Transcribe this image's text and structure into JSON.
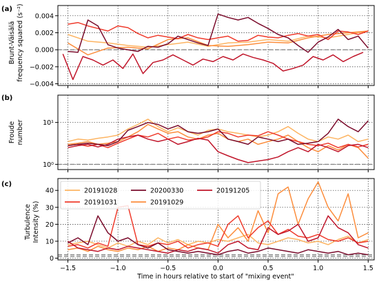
{
  "colors": {
    "20191028": "#fdb462",
    "20191029": "#fc8d3c",
    "20191031": "#ef3b2c",
    "20191205": "#c0152a",
    "20200330": "#7a0b2b"
  },
  "chart_data": [
    {
      "panel_label": "(a)",
      "type": "line",
      "ylabel": [
        "Brunt-Väisälä",
        "frequency squared (s⁻²)"
      ],
      "xlim": [
        -1.6,
        1.56
      ],
      "ylim": [
        -0.0042,
        0.0052
      ],
      "yticks": [
        -0.004,
        -0.002,
        0.0,
        0.002,
        0.004
      ],
      "ytick_labels": [
        "−0.004",
        "−0.002",
        "0.000",
        "0.002",
        "0.004"
      ],
      "xticks": [
        -1.5,
        -1.0,
        -0.5,
        0.0,
        0.5,
        1.0,
        1.5
      ],
      "xtick_labels": [
        "",
        "",
        "",
        "",
        "",
        "",
        ""
      ],
      "reference_lines": [
        0.0
      ],
      "grid": true,
      "series": [
        {
          "name": "20191028",
          "x": [
            -1.5,
            -1.3,
            -1.1,
            -0.9,
            -0.7,
            -0.5,
            -0.3,
            -0.1,
            0.1,
            0.3,
            0.5,
            0.7,
            0.9,
            1.1,
            1.3,
            1.5
          ],
          "y": [
            0.0018,
            0.001,
            0.0008,
            0.0005,
            0.0003,
            0.0006,
            0.0009,
            0.0004,
            0.0008,
            0.0009,
            0.0012,
            0.001,
            0.0016,
            0.0014,
            0.0018,
            0.0022
          ]
        },
        {
          "name": "20191029",
          "x": [
            -1.5,
            -1.3,
            -1.1,
            -0.9,
            -0.7,
            -0.5,
            -0.3,
            -0.1,
            0.1,
            0.3,
            0.5,
            0.7,
            0.9,
            1.1,
            1.3,
            1.5
          ],
          "y": [
            0.0008,
            -0.0006,
            0.0002,
            0.0003,
            0.0001,
            0.0012,
            0.0014,
            0.0005,
            0.0004,
            0.0006,
            0.0009,
            0.0008,
            0.0014,
            0.0018,
            0.002,
            0.0022
          ]
        },
        {
          "name": "20191031",
          "x": [
            -1.5,
            -1.4,
            -1.3,
            -1.2,
            -1.1,
            -1.0,
            -0.9,
            -0.8,
            -0.7,
            -0.6,
            -0.5,
            -0.4,
            -0.3,
            -0.2,
            -0.1,
            0.0,
            0.1,
            0.2,
            0.3,
            0.4,
            0.5,
            0.6,
            0.7,
            0.8,
            0.9,
            1.0,
            1.1,
            1.2,
            1.3,
            1.4,
            1.5
          ],
          "y": [
            0.003,
            0.0032,
            0.0028,
            0.0025,
            0.0022,
            0.0028,
            0.0026,
            0.0019,
            0.0014,
            0.0017,
            0.0015,
            0.0013,
            0.0018,
            0.0014,
            0.0012,
            0.0014,
            0.0016,
            0.001,
            0.0011,
            0.0017,
            0.0015,
            0.0014,
            0.0017,
            0.0019,
            0.0016,
            0.0018,
            0.0012,
            0.0022,
            0.0021,
            0.0018,
            0.0022
          ]
        },
        {
          "name": "20191205",
          "x": [
            -1.55,
            -1.45,
            -1.35,
            -1.25,
            -1.15,
            -1.05,
            -0.95,
            -0.85,
            -0.75,
            -0.65,
            -0.55,
            -0.45,
            -0.35,
            -0.25,
            -0.15,
            -0.05,
            0.05,
            0.15,
            0.25,
            0.35,
            0.45,
            0.55,
            0.65,
            0.75,
            0.85,
            0.95,
            1.05,
            1.15,
            1.25,
            1.35,
            1.45
          ],
          "y": [
            -0.0005,
            -0.0035,
            -0.0008,
            -0.0012,
            -0.0018,
            -0.0012,
            -0.0022,
            -0.0005,
            -0.0028,
            -0.0015,
            -0.0012,
            -0.0006,
            -0.0012,
            -0.0018,
            -0.0011,
            -0.0014,
            -0.0008,
            -0.0012,
            -0.0005,
            -0.0009,
            -0.0012,
            -0.0016,
            -0.0025,
            -0.0022,
            -0.0018,
            -0.0008,
            -0.0012,
            -0.0006,
            -0.0014,
            -0.0008,
            -0.0003
          ]
        },
        {
          "name": "20200330",
          "x": [
            -1.5,
            -1.4,
            -1.3,
            -1.2,
            -1.1,
            -1.0,
            -0.9,
            -0.8,
            -0.7,
            -0.6,
            -0.5,
            -0.4,
            -0.3,
            -0.2,
            -0.1,
            0.0,
            0.1,
            0.2,
            0.3,
            0.4,
            0.5,
            0.6,
            0.7,
            0.8,
            0.9,
            1.0,
            1.1,
            1.2,
            1.3,
            1.4,
            1.5
          ],
          "y": [
            -0.0002,
            -0.0003,
            0.0035,
            0.0028,
            0.0006,
            0.0002,
            0.0,
            -0.0002,
            0.0004,
            0.0003,
            0.0007,
            0.0016,
            0.0012,
            0.0008,
            0.0005,
            0.0042,
            0.0038,
            0.0035,
            0.0038,
            0.0031,
            0.0025,
            0.0018,
            0.0014,
            0.0005,
            -0.0003,
            0.0009,
            0.0015,
            0.0024,
            0.0012,
            0.0016,
            0.0002
          ]
        }
      ]
    },
    {
      "panel_label": "(b)",
      "type": "line",
      "ylabel": [
        "Froude",
        "number"
      ],
      "yscale": "log",
      "xlim": [
        -1.6,
        1.56
      ],
      "ylim": [
        0.75,
        45
      ],
      "yticks": [
        1,
        10
      ],
      "ytick_labels": [
        "10⁰",
        "10¹"
      ],
      "xticks": [
        -1.5,
        -1.0,
        -0.5,
        0.0,
        0.5,
        1.0,
        1.5
      ],
      "xtick_labels": [
        "",
        "",
        "",
        "",
        "",
        "",
        ""
      ],
      "reference_lines": [
        1
      ],
      "grid": true,
      "series": [
        {
          "name": "20191028",
          "x": [
            -1.5,
            -1.4,
            -1.3,
            -1.2,
            -1.1,
            -1.0,
            -0.9,
            -0.8,
            -0.7,
            -0.6,
            -0.5,
            -0.4,
            -0.3,
            -0.2,
            -0.1,
            0.0,
            0.1,
            0.2,
            0.3,
            0.4,
            0.5,
            0.6,
            0.7,
            0.8,
            0.9,
            1.0,
            1.1,
            1.2,
            1.3,
            1.4,
            1.5
          ],
          "y": [
            3.5,
            4.0,
            3.8,
            4.2,
            4.5,
            5.0,
            7.0,
            9.0,
            12.0,
            8.0,
            6.0,
            7.5,
            6.0,
            5.0,
            6.5,
            7.0,
            6.0,
            5.5,
            5.0,
            4.5,
            5.0,
            6.0,
            8.0,
            5.5,
            4.0,
            3.5,
            4.5,
            4.0,
            5.0,
            3.5,
            4.0
          ]
        },
        {
          "name": "20191029",
          "x": [
            -1.5,
            -1.4,
            -1.3,
            -1.2,
            -1.1,
            -1.0,
            -0.9,
            -0.8,
            -0.7,
            -0.6,
            -0.5,
            -0.4,
            -0.3,
            -0.2,
            -0.1,
            0.0,
            0.1,
            0.2,
            0.3,
            0.4,
            0.5,
            0.6,
            0.7,
            0.8,
            0.9,
            1.0,
            1.1,
            1.2,
            1.3,
            1.4,
            1.5
          ],
          "y": [
            3.0,
            3.2,
            3.5,
            3.0,
            3.2,
            3.5,
            4.5,
            6.0,
            9.0,
            7.0,
            5.5,
            6.0,
            4.5,
            4.0,
            5.0,
            5.5,
            4.0,
            3.5,
            4.0,
            3.0,
            3.5,
            4.0,
            5.0,
            3.5,
            2.5,
            2.0,
            2.8,
            2.2,
            3.0,
            2.5,
            1.4
          ]
        },
        {
          "name": "20191031",
          "x": [
            -1.5,
            -1.4,
            -1.3,
            -1.2,
            -1.1,
            -1.0,
            -0.9,
            -0.8,
            -0.7,
            -0.6,
            -0.5,
            -0.4,
            -0.3,
            -0.2,
            -0.1,
            0.0,
            0.1,
            0.2,
            0.3,
            0.4,
            0.5,
            0.6,
            0.7,
            0.8,
            0.9,
            1.0,
            1.1,
            1.2,
            1.3,
            1.4,
            1.5
          ],
          "y": [
            2.8,
            3.0,
            2.7,
            3.0,
            2.5,
            3.2,
            4.0,
            5.0,
            4.5,
            5.5,
            4.0,
            4.5,
            3.8,
            4.0,
            4.5,
            6.0,
            5.5,
            4.5,
            5.0,
            4.8,
            6.0,
            5.0,
            4.0,
            3.5,
            3.0,
            2.8,
            3.2,
            2.5,
            3.0,
            2.6,
            3.0
          ]
        },
        {
          "name": "20191205",
          "x": [
            -1.5,
            -1.4,
            -1.3,
            -1.2,
            -1.1,
            -1.0,
            -0.9,
            -0.8,
            -0.7,
            -0.6,
            -0.5,
            -0.4,
            -0.3,
            -0.2,
            -0.1,
            0.0,
            0.1,
            0.2,
            0.3,
            0.4,
            0.5,
            0.6,
            0.7,
            0.8,
            0.9,
            1.0,
            1.1,
            1.2,
            1.3,
            1.4,
            1.5
          ],
          "y": [
            2.5,
            2.8,
            3.0,
            2.6,
            3.0,
            4.0,
            4.5,
            5.0,
            4.0,
            3.5,
            4.0,
            3.0,
            3.5,
            4.2,
            3.8,
            2.0,
            1.6,
            1.3,
            1.1,
            1.2,
            1.3,
            1.5,
            2.0,
            2.5,
            2.0,
            3.0,
            2.5,
            2.0,
            2.8,
            3.0,
            2.5
          ]
        },
        {
          "name": "20200330",
          "x": [
            -1.5,
            -1.4,
            -1.3,
            -1.2,
            -1.1,
            -1.0,
            -0.9,
            -0.8,
            -0.7,
            -0.6,
            -0.5,
            -0.4,
            -0.3,
            -0.2,
            -0.1,
            0.0,
            0.1,
            0.2,
            0.3,
            0.4,
            0.5,
            0.6,
            0.7,
            0.8,
            0.9,
            1.0,
            1.1,
            1.2,
            1.3,
            1.4,
            1.5
          ],
          "y": [
            2.8,
            3.0,
            3.2,
            3.0,
            2.8,
            3.5,
            6.5,
            8.0,
            10.0,
            9.0,
            7.0,
            8.5,
            6.0,
            5.5,
            6.0,
            7.0,
            4.0,
            3.5,
            3.0,
            4.5,
            4.0,
            3.5,
            4.0,
            3.0,
            3.2,
            3.5,
            5.5,
            12.0,
            8.0,
            6.0,
            11.0
          ]
        }
      ]
    },
    {
      "panel_label": "(c)",
      "type": "line",
      "ylabel": [
        "Turbulence",
        "Intensity (%)"
      ],
      "xlabel": "Time in hours relative to start of \"mixing event\"",
      "xlim": [
        -1.6,
        1.56
      ],
      "ylim": [
        -1,
        47
      ],
      "yticks": [
        0,
        10,
        20,
        30,
        40
      ],
      "ytick_labels": [
        "0",
        "10",
        "20",
        "30",
        "40"
      ],
      "xticks": [
        -1.5,
        -1.0,
        -0.5,
        0.0,
        0.5,
        1.0,
        1.5
      ],
      "xtick_labels": [
        "−1.5",
        "−1.0",
        "−0.5",
        "0.0",
        "0.5",
        "1.0",
        "1.5"
      ],
      "reference_lines": [
        1,
        2
      ],
      "grid": true,
      "legend": {
        "placement": "upper-left",
        "entries": [
          "20191028",
          "20191031",
          "20200330",
          "20191029",
          "20191205"
        ]
      },
      "series": [
        {
          "name": "20191028",
          "x": [
            -1.5,
            -1.4,
            -1.3,
            -1.2,
            -1.1,
            -1.0,
            -0.9,
            -0.8,
            -0.7,
            -0.6,
            -0.5,
            -0.4,
            -0.3,
            -0.2,
            -0.1,
            0.0,
            0.1,
            0.2,
            0.3,
            0.4,
            0.5,
            0.6,
            0.7,
            0.8,
            0.9,
            1.0,
            1.1,
            1.2,
            1.3,
            1.4,
            1.5
          ],
          "y": [
            8,
            9,
            10,
            8,
            6,
            9,
            7,
            10,
            8,
            12,
            9,
            11,
            8,
            10,
            9,
            11,
            10,
            12,
            14,
            9,
            8,
            10,
            12,
            11,
            9,
            10,
            8,
            11,
            13,
            9,
            11
          ]
        },
        {
          "name": "20191029",
          "x": [
            -1.5,
            -1.4,
            -1.3,
            -1.2,
            -1.1,
            -1.0,
            -0.9,
            -0.8,
            -0.7,
            -0.6,
            -0.5,
            -0.4,
            -0.3,
            -0.2,
            -0.1,
            0.0,
            0.1,
            0.2,
            0.3,
            0.4,
            0.5,
            0.6,
            0.7,
            0.8,
            0.9,
            1.0,
            1.1,
            1.2,
            1.3,
            1.4,
            1.5
          ],
          "y": [
            5,
            6,
            4,
            7,
            5,
            4,
            6,
            5,
            7,
            4,
            6,
            5,
            8,
            6,
            5,
            20,
            12,
            18,
            10,
            28,
            15,
            38,
            42,
            20,
            35,
            45,
            30,
            22,
            38,
            12,
            15
          ]
        },
        {
          "name": "20191031",
          "x": [
            -1.5,
            -1.4,
            -1.3,
            -1.2,
            -1.1,
            -1.0,
            -0.9,
            -0.8,
            -0.7,
            -0.6,
            -0.5,
            -0.4,
            -0.3,
            -0.2,
            -0.1,
            0.0,
            0.1,
            0.2,
            0.3,
            0.4,
            0.5,
            0.6,
            0.7,
            0.8,
            0.9,
            1.0,
            1.1,
            1.2,
            1.3,
            1.4,
            1.5
          ],
          "y": [
            7,
            8,
            6,
            9,
            7,
            30,
            31,
            8,
            7,
            9,
            8,
            10,
            6,
            8,
            9,
            7,
            20,
            25,
            12,
            18,
            22,
            14,
            17,
            13,
            12,
            14,
            11,
            10,
            12,
            9,
            10
          ]
        },
        {
          "name": "20191205",
          "x": [
            -1.5,
            -1.4,
            -1.3,
            -1.2,
            -1.1,
            -1.0,
            -0.9,
            -0.8,
            -0.7,
            -0.6,
            -0.5,
            -0.4,
            -0.3,
            -0.2,
            -0.1,
            0.0,
            0.1,
            0.2,
            0.3,
            0.4,
            0.5,
            0.6,
            0.7,
            0.8,
            0.9,
            1.0,
            1.1,
            1.2,
            1.3,
            1.4,
            1.5
          ],
          "y": [
            10,
            6,
            5,
            4,
            6,
            5,
            7,
            6,
            5,
            4,
            3,
            5,
            4,
            6,
            5,
            3,
            8,
            10,
            6,
            5,
            18,
            14,
            16,
            20,
            10,
            12,
            25,
            18,
            15,
            8,
            6
          ]
        },
        {
          "name": "20200330",
          "x": [
            -1.5,
            -1.4,
            -1.3,
            -1.2,
            -1.1,
            -1.0,
            -0.9,
            -0.8,
            -0.7,
            -0.6,
            -0.5,
            -0.4,
            -0.3,
            -0.2,
            -0.1,
            0.0,
            0.1,
            0.2,
            0.3,
            0.4,
            0.5,
            0.6,
            0.7,
            0.8,
            0.9,
            1.0,
            1.1,
            1.2,
            1.3,
            1.4,
            1.5
          ],
          "y": [
            9,
            12,
            8,
            25,
            15,
            10,
            12,
            8,
            6,
            9,
            5,
            4,
            3,
            4,
            3,
            2,
            4,
            5,
            3,
            4,
            6,
            5,
            4,
            3,
            5,
            4,
            3,
            4,
            2,
            3,
            2
          ]
        }
      ]
    }
  ]
}
